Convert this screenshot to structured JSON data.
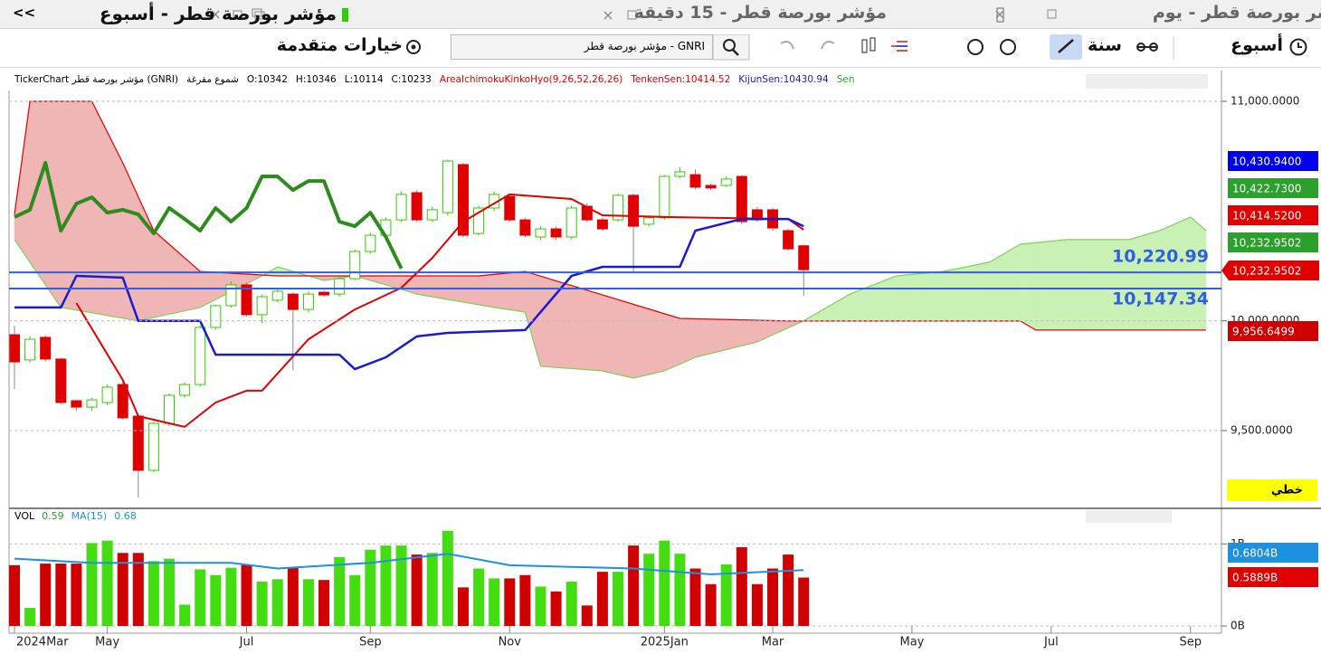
{
  "nav": {
    "collapse": "<<"
  },
  "tabs": [
    {
      "title": "مؤشر بورصة قطر - أسبوع",
      "active": true
    },
    {
      "title": "مؤشر بورصة قطر - 15 دقيقة",
      "active": false
    },
    {
      "title": "مؤشر بورصة قطر - يوم",
      "active": false
    }
  ],
  "toolbar": {
    "advanced_options": "خيارات متقدمة",
    "search": "GNRI - مؤشر بورصة قطر",
    "period": "سنة",
    "interval": "أسبوع"
  },
  "info_bar": [
    {
      "text": "TickerChart مؤشر بورصة قطر (GNRI)",
      "color": "#000000"
    },
    {
      "text": "شموع مفرغة",
      "color": "#000000"
    },
    {
      "text": "O:10342",
      "color": "#000000"
    },
    {
      "text": "H:10346",
      "color": "#000000"
    },
    {
      "text": "L:10114",
      "color": "#000000"
    },
    {
      "text": "C:10233",
      "color": "#000000"
    },
    {
      "text": "AreaIchimokuKinkoHyo(9,26,52,26,26)",
      "color": "#e00000"
    },
    {
      "text": "TenkenSen:10414.52",
      "color": "#e00000"
    },
    {
      "text": "KijunSen:10430.94",
      "color": "#1a1ad0"
    },
    {
      "text": "Sen",
      "color": "#2ca02c"
    }
  ],
  "chart": {
    "xlim": [
      -0.35,
      78
    ],
    "xticks": [
      {
        "value": 0,
        "label": "2024Mar"
      },
      {
        "value": 6,
        "label": "May"
      },
      {
        "value": 15,
        "label": "Jul"
      },
      {
        "value": 23,
        "label": "Sep"
      },
      {
        "value": 32,
        "label": "Nov"
      },
      {
        "value": 42,
        "label": "2025Jan"
      },
      {
        "value": 49,
        "label": "Mar"
      },
      {
        "value": 58,
        "label": "May"
      },
      {
        "value": 67,
        "label": "Jul"
      },
      {
        "value": 76,
        "label": "Sep"
      }
    ],
    "price_pane": {
      "type": "candlestick",
      "ylim": [
        9154,
        11132
      ],
      "yticks": [
        {
          "value": 9500,
          "label": "9,500.0000"
        },
        {
          "value": 10000,
          "label": "10,000.0000"
        },
        {
          "value": 11000,
          "label": "11,000.0000"
        }
      ],
      "grid": true,
      "up_color": "#33cc00",
      "down_color": "#e00000",
      "open": [
        9937,
        9822,
        9925,
        9826,
        9636,
        9607,
        9628,
        9710,
        9566,
        9319,
        9533,
        9661,
        9710,
        9970,
        10069,
        10164,
        10028,
        10094,
        10122,
        10052,
        10130,
        10122,
        10192,
        10316,
        10390,
        10460,
        10584,
        10460,
        10493,
        10712,
        10398,
        10514,
        10567,
        10460,
        10382,
        10419,
        10382,
        10522,
        10460,
        10460,
        10572,
        10440,
        10469,
        10658,
        10666,
        10617,
        10617,
        10658,
        10506,
        10506,
        10411,
        10342
      ],
      "high": [
        9978,
        9930,
        9935,
        9830,
        9640,
        9650,
        9710,
        9730,
        9570,
        9540,
        9670,
        9720,
        9980,
        10075,
        10180,
        10175,
        10120,
        10145,
        10130,
        10135,
        10140,
        10205,
        10325,
        10400,
        10470,
        10590,
        10595,
        10520,
        10735,
        10720,
        10525,
        10590,
        10580,
        10470,
        10430,
        10430,
        10525,
        10535,
        10470,
        10580,
        10580,
        10480,
        10665,
        10700,
        10690,
        10625,
        10660,
        10665,
        10520,
        10515,
        10420,
        10346
      ],
      "low": [
        9690,
        9810,
        9815,
        9620,
        9590,
        9590,
        9615,
        9550,
        9195,
        9310,
        9520,
        9650,
        9700,
        9960,
        10060,
        10020,
        9990,
        10085,
        9775,
        10040,
        10110,
        10110,
        10185,
        10305,
        10380,
        10450,
        10450,
        10450,
        10480,
        10380,
        10390,
        10500,
        10450,
        10380,
        10370,
        10370,
        10370,
        10450,
        10410,
        10450,
        10225,
        10430,
        10460,
        10650,
        10600,
        10595,
        10610,
        10440,
        10450,
        10410,
        10320,
        10114
      ],
      "close": [
        9813,
        9916,
        9826,
        9628,
        9607,
        9640,
        9698,
        9558,
        9319,
        9533,
        9661,
        9710,
        9970,
        10069,
        10164,
        10028,
        10110,
        10135,
        10052,
        10122,
        10118,
        10192,
        10316,
        10390,
        10460,
        10576,
        10460,
        10506,
        10728,
        10390,
        10514,
        10576,
        10460,
        10390,
        10419,
        10382,
        10514,
        10460,
        10419,
        10572,
        10431,
        10469,
        10658,
        10679,
        10609,
        10605,
        10646,
        10452,
        10460,
        10423,
        10328,
        10233
      ],
      "cloud": {
        "span_a": {
          "color": "#7fcf5f",
          "x": [
            0,
            3,
            8,
            12,
            16,
            17,
            20,
            22,
            24,
            26,
            31,
            33,
            34,
            38,
            40,
            42,
            44,
            48,
            51,
            54,
            57,
            60,
            63,
            65,
            68,
            72,
            74,
            76,
            77
          ],
          "values": [
            10370,
            10061,
            10000,
            10061,
            10205,
            10246,
            10184,
            10205,
            10164,
            10122,
            10061,
            10040,
            9793,
            9772,
            9739,
            9772,
            9834,
            9904,
            10000,
            10122,
            10205,
            10225,
            10267,
            10349,
            10370,
            10370,
            10411,
            10473,
            10411
          ]
        },
        "span_b": {
          "color": "#e00000",
          "x": [
            0,
            1,
            5,
            7,
            9,
            12,
            17,
            30,
            33,
            43,
            50,
            65,
            66,
            77
          ],
          "values": [
            10485,
            11000,
            11000,
            10720,
            10411,
            10225,
            10205,
            10205,
            10225,
            10011,
            9999,
            9999,
            9958,
            9958
          ]
        },
        "up_fill": "#c9f1b5",
        "down_fill": "#f0b6b6"
      },
      "lines": [
        {
          "color": "#e00000",
          "width": 2,
          "x": [
            4,
            7,
            8,
            10,
            11,
            13,
            15,
            16,
            19,
            22,
            25,
            27,
            29,
            32,
            36,
            38,
            42,
            50,
            51
          ],
          "values": [
            10081,
            9731,
            9566,
            9533,
            9517,
            9628,
            9682,
            9682,
            9916,
            10052,
            10151,
            10287,
            10452,
            10576,
            10555,
            10481,
            10473,
            10464,
            10414.52
          ]
        },
        {
          "color": "#1a1ad0",
          "width": 2.5,
          "x": [
            0,
            3,
            4,
            7,
            8,
            12,
            13,
            21,
            22,
            24,
            26,
            28,
            33,
            36,
            38,
            43,
            44,
            47,
            50,
            51
          ],
          "values": [
            10061,
            10061,
            10205,
            10197,
            10000,
            10000,
            9846,
            9846,
            9780,
            9834,
            9929,
            9945,
            9958,
            10205,
            10246,
            10246,
            10411,
            10464,
            10464,
            10430.94
          ]
        },
        {
          "color": "#2e8b1e",
          "width": 4,
          "x": [
            0,
            1,
            2,
            3,
            4,
            5,
            6,
            7,
            8,
            9,
            10,
            11,
            12,
            13,
            14,
            15,
            16,
            17,
            18,
            19,
            20,
            21,
            22,
            23,
            24,
            25
          ],
          "values": [
            10473,
            10506,
            10720,
            10411,
            10534,
            10563,
            10493,
            10506,
            10485,
            10398,
            10514,
            10464,
            10411,
            10514,
            10452,
            10514,
            10658,
            10658,
            10596,
            10637,
            10637,
            10452,
            10431,
            10493,
            10382,
            10238
          ]
        }
      ],
      "hlines": {
        "color": "#3060e0",
        "items": [
          {
            "value": 10220.99,
            "label": "10,220.99"
          },
          {
            "value": 10147.34,
            "label": "10,147.34"
          }
        ]
      },
      "price_tags": [
        {
          "label": "10,430.9400",
          "color": "#0000ee"
        },
        {
          "label": "10,422.7300",
          "color": "#2ca02c"
        },
        {
          "label": "10,414.5200",
          "color": "#e00000"
        },
        {
          "label": "10,232.9502",
          "color": "#2ca02c"
        },
        {
          "label": "10,232.9502",
          "color": "#e00000"
        },
        {
          "label": "9,956.6499",
          "color": "#d00000"
        }
      ],
      "scale_mode": "خطي"
    },
    "volume_pane": {
      "type": "bar",
      "legend": [
        {
          "text": "VOL",
          "color": "#000000"
        },
        {
          "text": "0.59",
          "color": "#2ca02c"
        },
        {
          "text": "MA(15)",
          "color": "#1e90e0"
        },
        {
          "text": "0.68",
          "color": "#1e90e0"
        }
      ],
      "ylim": [
        -0.088,
        1.4
      ],
      "yticks": [
        {
          "value": 0,
          "label": "0B"
        },
        {
          "value": 1,
          "label": "1B"
        }
      ],
      "up_color": "#44dd11",
      "down_color": "#d00000",
      "values": [
        0.74,
        0.22,
        0.76,
        0.76,
        0.76,
        1.01,
        1.04,
        0.89,
        0.89,
        0.79,
        0.82,
        0.26,
        0.69,
        0.62,
        0.71,
        0.75,
        0.54,
        0.57,
        0.71,
        0.57,
        0.56,
        0.84,
        0.62,
        0.93,
        0.98,
        0.98,
        0.87,
        0.89,
        1.16,
        0.47,
        0.7,
        0.58,
        0.58,
        0.62,
        0.48,
        0.42,
        0.54,
        0.25,
        0.66,
        0.66,
        0.98,
        0.88,
        1.04,
        0.88,
        0.7,
        0.51,
        0.75,
        0.96,
        0.51,
        0.7,
        0.87,
        0.59
      ],
      "ma": {
        "color": "#1e90e0",
        "x": [
          0,
          5,
          14,
          17,
          23,
          28,
          32,
          40,
          45,
          51
        ],
        "values": [
          0.82,
          0.77,
          0.77,
          0.7,
          0.77,
          0.88,
          0.74,
          0.7,
          0.63,
          0.68
        ]
      },
      "tags": [
        {
          "label": "0.6804B",
          "color": "#1e90e0"
        },
        {
          "label": "0.5889B",
          "color": "#e00000"
        }
      ]
    }
  }
}
